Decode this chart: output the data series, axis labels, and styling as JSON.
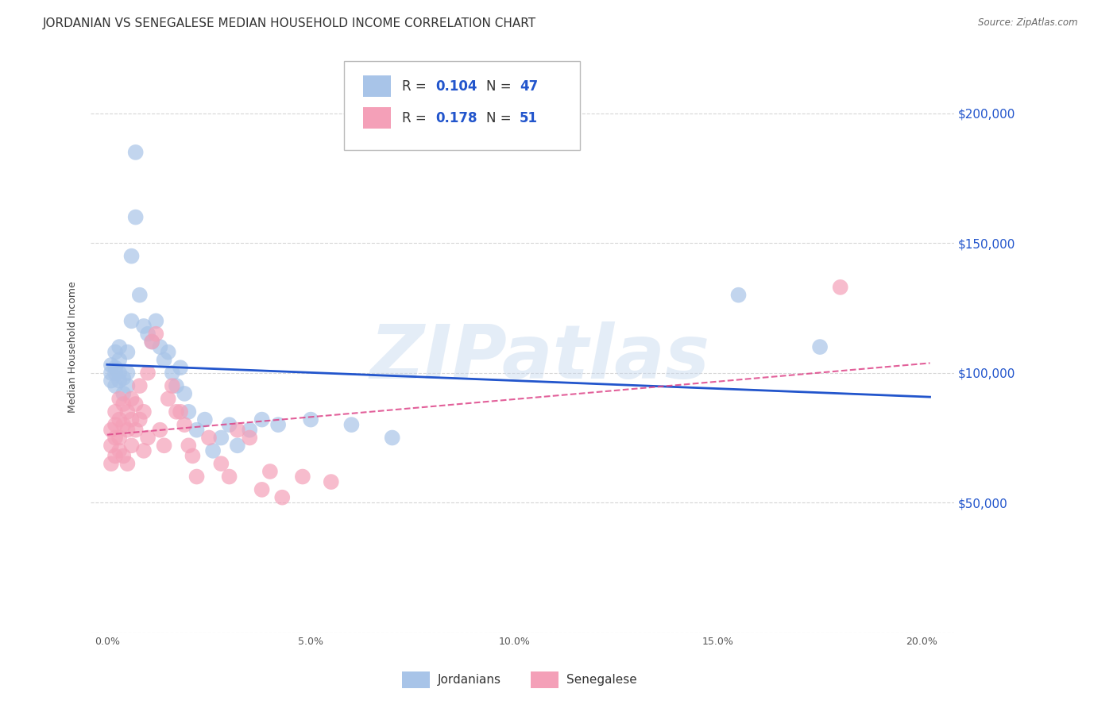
{
  "title": "JORDANIAN VS SENEGALESE MEDIAN HOUSEHOLD INCOME CORRELATION CHART",
  "source": "Source: ZipAtlas.com",
  "xlabel_ticks": [
    "0.0%",
    "5.0%",
    "10.0%",
    "15.0%",
    "20.0%"
  ],
  "xlabel_vals": [
    0.0,
    0.05,
    0.1,
    0.15,
    0.2
  ],
  "ylabel": "Median Household Income",
  "yticks": [
    0,
    50000,
    100000,
    150000,
    200000
  ],
  "ytick_labels": [
    "",
    "$50,000",
    "$100,000",
    "$150,000",
    "$200,000"
  ],
  "ylim": [
    0,
    220000
  ],
  "xlim": [
    -0.004,
    0.208
  ],
  "watermark": "ZIPatlas",
  "legend_labels": [
    "Jordanians",
    "Senegalese"
  ],
  "R_jordan": 0.104,
  "N_jordan": 47,
  "R_senegal": 0.178,
  "N_senegal": 51,
  "jordan_color": "#a8c4e8",
  "senegal_color": "#f4a0b8",
  "jordan_line_color": "#2255cc",
  "senegal_line_color": "#dd4488",
  "background_color": "#ffffff",
  "grid_color": "#cccccc",
  "title_fontsize": 11,
  "axis_label_fontsize": 9,
  "tick_fontsize": 9,
  "jordan_x": [
    0.001,
    0.001,
    0.001,
    0.002,
    0.002,
    0.002,
    0.002,
    0.003,
    0.003,
    0.003,
    0.003,
    0.004,
    0.004,
    0.005,
    0.005,
    0.005,
    0.006,
    0.006,
    0.007,
    0.007,
    0.008,
    0.009,
    0.01,
    0.011,
    0.012,
    0.013,
    0.014,
    0.015,
    0.016,
    0.017,
    0.018,
    0.019,
    0.02,
    0.022,
    0.024,
    0.026,
    0.028,
    0.03,
    0.032,
    0.035,
    0.038,
    0.042,
    0.05,
    0.06,
    0.07,
    0.155,
    0.175
  ],
  "jordan_y": [
    97000,
    103000,
    100000,
    95000,
    102000,
    108000,
    100000,
    105000,
    97000,
    110000,
    100000,
    92000,
    98000,
    100000,
    95000,
    108000,
    120000,
    145000,
    160000,
    185000,
    130000,
    118000,
    115000,
    112000,
    120000,
    110000,
    105000,
    108000,
    100000,
    95000,
    102000,
    92000,
    85000,
    78000,
    82000,
    70000,
    75000,
    80000,
    72000,
    78000,
    82000,
    80000,
    82000,
    80000,
    75000,
    130000,
    110000
  ],
  "senegal_x": [
    0.001,
    0.001,
    0.001,
    0.002,
    0.002,
    0.002,
    0.002,
    0.003,
    0.003,
    0.003,
    0.003,
    0.004,
    0.004,
    0.004,
    0.005,
    0.005,
    0.005,
    0.006,
    0.006,
    0.006,
    0.007,
    0.007,
    0.008,
    0.008,
    0.009,
    0.009,
    0.01,
    0.01,
    0.011,
    0.012,
    0.013,
    0.014,
    0.015,
    0.016,
    0.017,
    0.018,
    0.019,
    0.02,
    0.021,
    0.022,
    0.025,
    0.028,
    0.03,
    0.032,
    0.035,
    0.038,
    0.04,
    0.043,
    0.048,
    0.055,
    0.18
  ],
  "senegal_y": [
    78000,
    72000,
    65000,
    85000,
    80000,
    75000,
    68000,
    90000,
    82000,
    75000,
    70000,
    88000,
    80000,
    68000,
    85000,
    78000,
    65000,
    90000,
    82000,
    72000,
    88000,
    78000,
    95000,
    82000,
    85000,
    70000,
    100000,
    75000,
    112000,
    115000,
    78000,
    72000,
    90000,
    95000,
    85000,
    85000,
    80000,
    72000,
    68000,
    60000,
    75000,
    65000,
    60000,
    78000,
    75000,
    55000,
    62000,
    52000,
    60000,
    58000,
    133000
  ]
}
